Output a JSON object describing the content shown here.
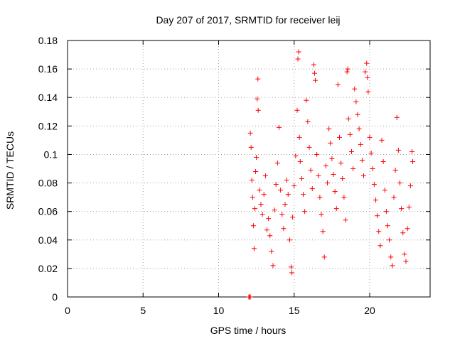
{
  "chart_data": {
    "type": "scatter",
    "title": "Day 207 of 2017, SRMTID for receiver leij",
    "xlabel": "GPS time / hours",
    "ylabel": "SRMTID / TECUs",
    "xlim": [
      0,
      24
    ],
    "ylim": [
      0,
      0.18
    ],
    "xticks": [
      0,
      5,
      10,
      15,
      20
    ],
    "yticks": [
      0,
      0.02,
      0.04,
      0.06,
      0.08,
      0.1,
      0.12,
      0.14,
      0.16,
      0.18
    ],
    "xtick_labels": [
      "0",
      "5",
      "10",
      "15",
      "20"
    ],
    "ytick_labels": [
      "0",
      "0.02",
      "0.04",
      "0.06",
      "0.08",
      "0.1",
      "0.12",
      "0.14",
      "0.16",
      "0.18"
    ],
    "grid": true,
    "marker": "+",
    "series": [
      {
        "color": "#ff0000",
        "points": [
          [
            12.0,
            0.0
          ],
          [
            12.05,
            0.0
          ],
          [
            12.1,
            0.0
          ],
          [
            12.1,
            0.115
          ],
          [
            12.15,
            0.105
          ],
          [
            12.2,
            0.082
          ],
          [
            12.25,
            0.07
          ],
          [
            12.3,
            0.05
          ],
          [
            12.35,
            0.034
          ],
          [
            12.4,
            0.062
          ],
          [
            12.45,
            0.088
          ],
          [
            12.5,
            0.098
          ],
          [
            12.55,
            0.139
          ],
          [
            12.6,
            0.153
          ],
          [
            12.62,
            0.131
          ],
          [
            12.7,
            0.075
          ],
          [
            12.8,
            0.065
          ],
          [
            12.9,
            0.058
          ],
          [
            13.0,
            0.072
          ],
          [
            13.1,
            0.085
          ],
          [
            13.2,
            0.047
          ],
          [
            13.3,
            0.055
          ],
          [
            13.4,
            0.043
          ],
          [
            13.5,
            0.032
          ],
          [
            13.6,
            0.022
          ],
          [
            13.7,
            0.061
          ],
          [
            13.8,
            0.079
          ],
          [
            13.9,
            0.094
          ],
          [
            14.0,
            0.119
          ],
          [
            14.1,
            0.075
          ],
          [
            14.2,
            0.058
          ],
          [
            14.3,
            0.048
          ],
          [
            14.4,
            0.065
          ],
          [
            14.5,
            0.082
          ],
          [
            14.6,
            0.072
          ],
          [
            14.7,
            0.04
          ],
          [
            14.8,
            0.021
          ],
          [
            14.85,
            0.017
          ],
          [
            14.9,
            0.056
          ],
          [
            15.0,
            0.078
          ],
          [
            15.1,
            0.099
          ],
          [
            15.2,
            0.131
          ],
          [
            15.25,
            0.167
          ],
          [
            15.3,
            0.172
          ],
          [
            15.35,
            0.112
          ],
          [
            15.4,
            0.095
          ],
          [
            15.5,
            0.083
          ],
          [
            15.6,
            0.072
          ],
          [
            15.7,
            0.06
          ],
          [
            15.8,
            0.138
          ],
          [
            15.9,
            0.123
          ],
          [
            16.0,
            0.105
          ],
          [
            16.1,
            0.089
          ],
          [
            16.2,
            0.076
          ],
          [
            16.3,
            0.163
          ],
          [
            16.35,
            0.157
          ],
          [
            16.4,
            0.152
          ],
          [
            16.5,
            0.1
          ],
          [
            16.6,
            0.085
          ],
          [
            16.7,
            0.07
          ],
          [
            16.8,
            0.058
          ],
          [
            16.9,
            0.046
          ],
          [
            17.0,
            0.028
          ],
          [
            17.1,
            0.092
          ],
          [
            17.2,
            0.08
          ],
          [
            17.3,
            0.118
          ],
          [
            17.4,
            0.108
          ],
          [
            17.5,
            0.097
          ],
          [
            17.6,
            0.086
          ],
          [
            17.7,
            0.074
          ],
          [
            17.8,
            0.062
          ],
          [
            17.9,
            0.149
          ],
          [
            18.0,
            0.112
          ],
          [
            18.1,
            0.094
          ],
          [
            18.2,
            0.083
          ],
          [
            18.3,
            0.07
          ],
          [
            18.4,
            0.054
          ],
          [
            18.5,
            0.158
          ],
          [
            18.55,
            0.16
          ],
          [
            18.6,
            0.125
          ],
          [
            18.7,
            0.114
          ],
          [
            18.8,
            0.102
          ],
          [
            18.9,
            0.09
          ],
          [
            19.0,
            0.146
          ],
          [
            19.1,
            0.137
          ],
          [
            19.2,
            0.128
          ],
          [
            19.3,
            0.118
          ],
          [
            19.4,
            0.107
          ],
          [
            19.5,
            0.096
          ],
          [
            19.6,
            0.085
          ],
          [
            19.7,
            0.158
          ],
          [
            19.8,
            0.164
          ],
          [
            19.85,
            0.154
          ],
          [
            19.9,
            0.144
          ],
          [
            20.0,
            0.112
          ],
          [
            20.1,
            0.101
          ],
          [
            20.2,
            0.09
          ],
          [
            20.3,
            0.079
          ],
          [
            20.4,
            0.068
          ],
          [
            20.5,
            0.057
          ],
          [
            20.6,
            0.046
          ],
          [
            20.7,
            0.036
          ],
          [
            20.8,
            0.11
          ],
          [
            20.9,
            0.095
          ],
          [
            21.0,
            0.075
          ],
          [
            21.1,
            0.06
          ],
          [
            21.2,
            0.05
          ],
          [
            21.3,
            0.04
          ],
          [
            21.4,
            0.028
          ],
          [
            21.5,
            0.022
          ],
          [
            21.6,
            0.07
          ],
          [
            21.7,
            0.089
          ],
          [
            21.8,
            0.126
          ],
          [
            21.9,
            0.103
          ],
          [
            22.0,
            0.08
          ],
          [
            22.1,
            0.062
          ],
          [
            22.2,
            0.045
          ],
          [
            22.3,
            0.03
          ],
          [
            22.4,
            0.025
          ],
          [
            22.5,
            0.048
          ],
          [
            22.6,
            0.063
          ],
          [
            22.7,
            0.078
          ],
          [
            22.8,
            0.102
          ],
          [
            22.85,
            0.095
          ]
        ]
      }
    ]
  }
}
